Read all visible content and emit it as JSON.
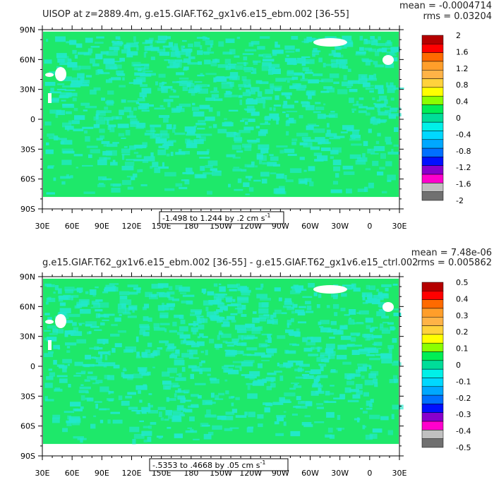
{
  "panels": [
    {
      "title": "UISOP at z=2889.4m, g.e15.GIAF.T62_gx1v6.e15_ebm.002 [36-55]",
      "mean_text": "mean = -0.0004714",
      "rms_text": "rms = 0.03204",
      "range_text": "-1.498 to 1.244 by .2 cm s",
      "range_exp": "-1",
      "colorbar_labels": [
        "2",
        "1.6",
        "1.2",
        "0.8",
        "0.4",
        "0",
        "-0.4",
        "-0.8",
        "-1.2",
        "-1.6",
        "-2"
      ]
    },
    {
      "title": "g.e15.GIAF.T62_gx1v6.e15_ebm.002 [36-55] - g.e15.GIAF.T62_gx1v6.e15_ctrl.002",
      "mean_text": "mean = 7.48e-06",
      "rms_text": "rms = 0.005862",
      "range_text": "-.5353 to .4668 by .05 cm s",
      "range_exp": "-1",
      "colorbar_labels": [
        "0.5",
        "0.4",
        "0.3",
        "0.2",
        "0.1",
        "0",
        "-0.1",
        "-0.2",
        "-0.3",
        "-0.4",
        "-0.5"
      ]
    }
  ],
  "x_tick_labels": [
    "30E",
    "60E",
    "90E",
    "120E",
    "150E",
    "180",
    "150W",
    "120W",
    "90W",
    "60W",
    "30W",
    "0",
    "30E"
  ],
  "y_tick_labels": [
    "90N",
    "60N",
    "30N",
    "0",
    "30S",
    "60S",
    "90S"
  ],
  "colors": {
    "colorbar": [
      "#b50000",
      "#ff0000",
      "#ff6a00",
      "#ff9e2a",
      "#ffb347",
      "#ffd23c",
      "#ffff00",
      "#8bff00",
      "#00ee55",
      "#00dd99",
      "#00f0e8",
      "#00d8ff",
      "#00a8ff",
      "#0070ff",
      "#0010ff",
      "#8800cc",
      "#ff00cc",
      "#c0c0c0",
      "#707070"
    ],
    "ocean": "#1ee86a",
    "anomaly": "#22e8cc",
    "land": "#ffffff"
  },
  "chart_data": [
    {
      "type": "heatmap",
      "variable": "UISOP",
      "depth": "z=2889.4m",
      "x_range": [
        "30E",
        "30E"
      ],
      "y_range": [
        "90S",
        "90N"
      ],
      "color_levels": [
        -2,
        -1.8,
        -1.6,
        -1.4,
        -1.2,
        -1.0,
        -0.8,
        -0.6,
        -0.4,
        -0.2,
        0,
        0.2,
        0.4,
        0.6,
        0.8,
        1.0,
        1.2,
        1.4,
        1.6,
        1.8,
        2
      ],
      "data_min": -1.498,
      "data_max": 1.244,
      "interval": 0.2,
      "units": "cm s-1",
      "mean": -0.0004714,
      "rms": 0.03204
    },
    {
      "type": "heatmap",
      "variable": "UISOP difference",
      "x_range": [
        "30E",
        "30E"
      ],
      "y_range": [
        "90S",
        "90N"
      ],
      "color_levels": [
        -0.5,
        -0.45,
        -0.4,
        -0.35,
        -0.3,
        -0.25,
        -0.2,
        -0.15,
        -0.1,
        -0.05,
        0,
        0.05,
        0.1,
        0.15,
        0.2,
        0.25,
        0.3,
        0.35,
        0.4,
        0.45,
        0.5
      ],
      "data_min": -0.5353,
      "data_max": 0.4668,
      "interval": 0.05,
      "units": "cm s-1",
      "mean": 7.48e-06,
      "rms": 0.005862
    }
  ]
}
